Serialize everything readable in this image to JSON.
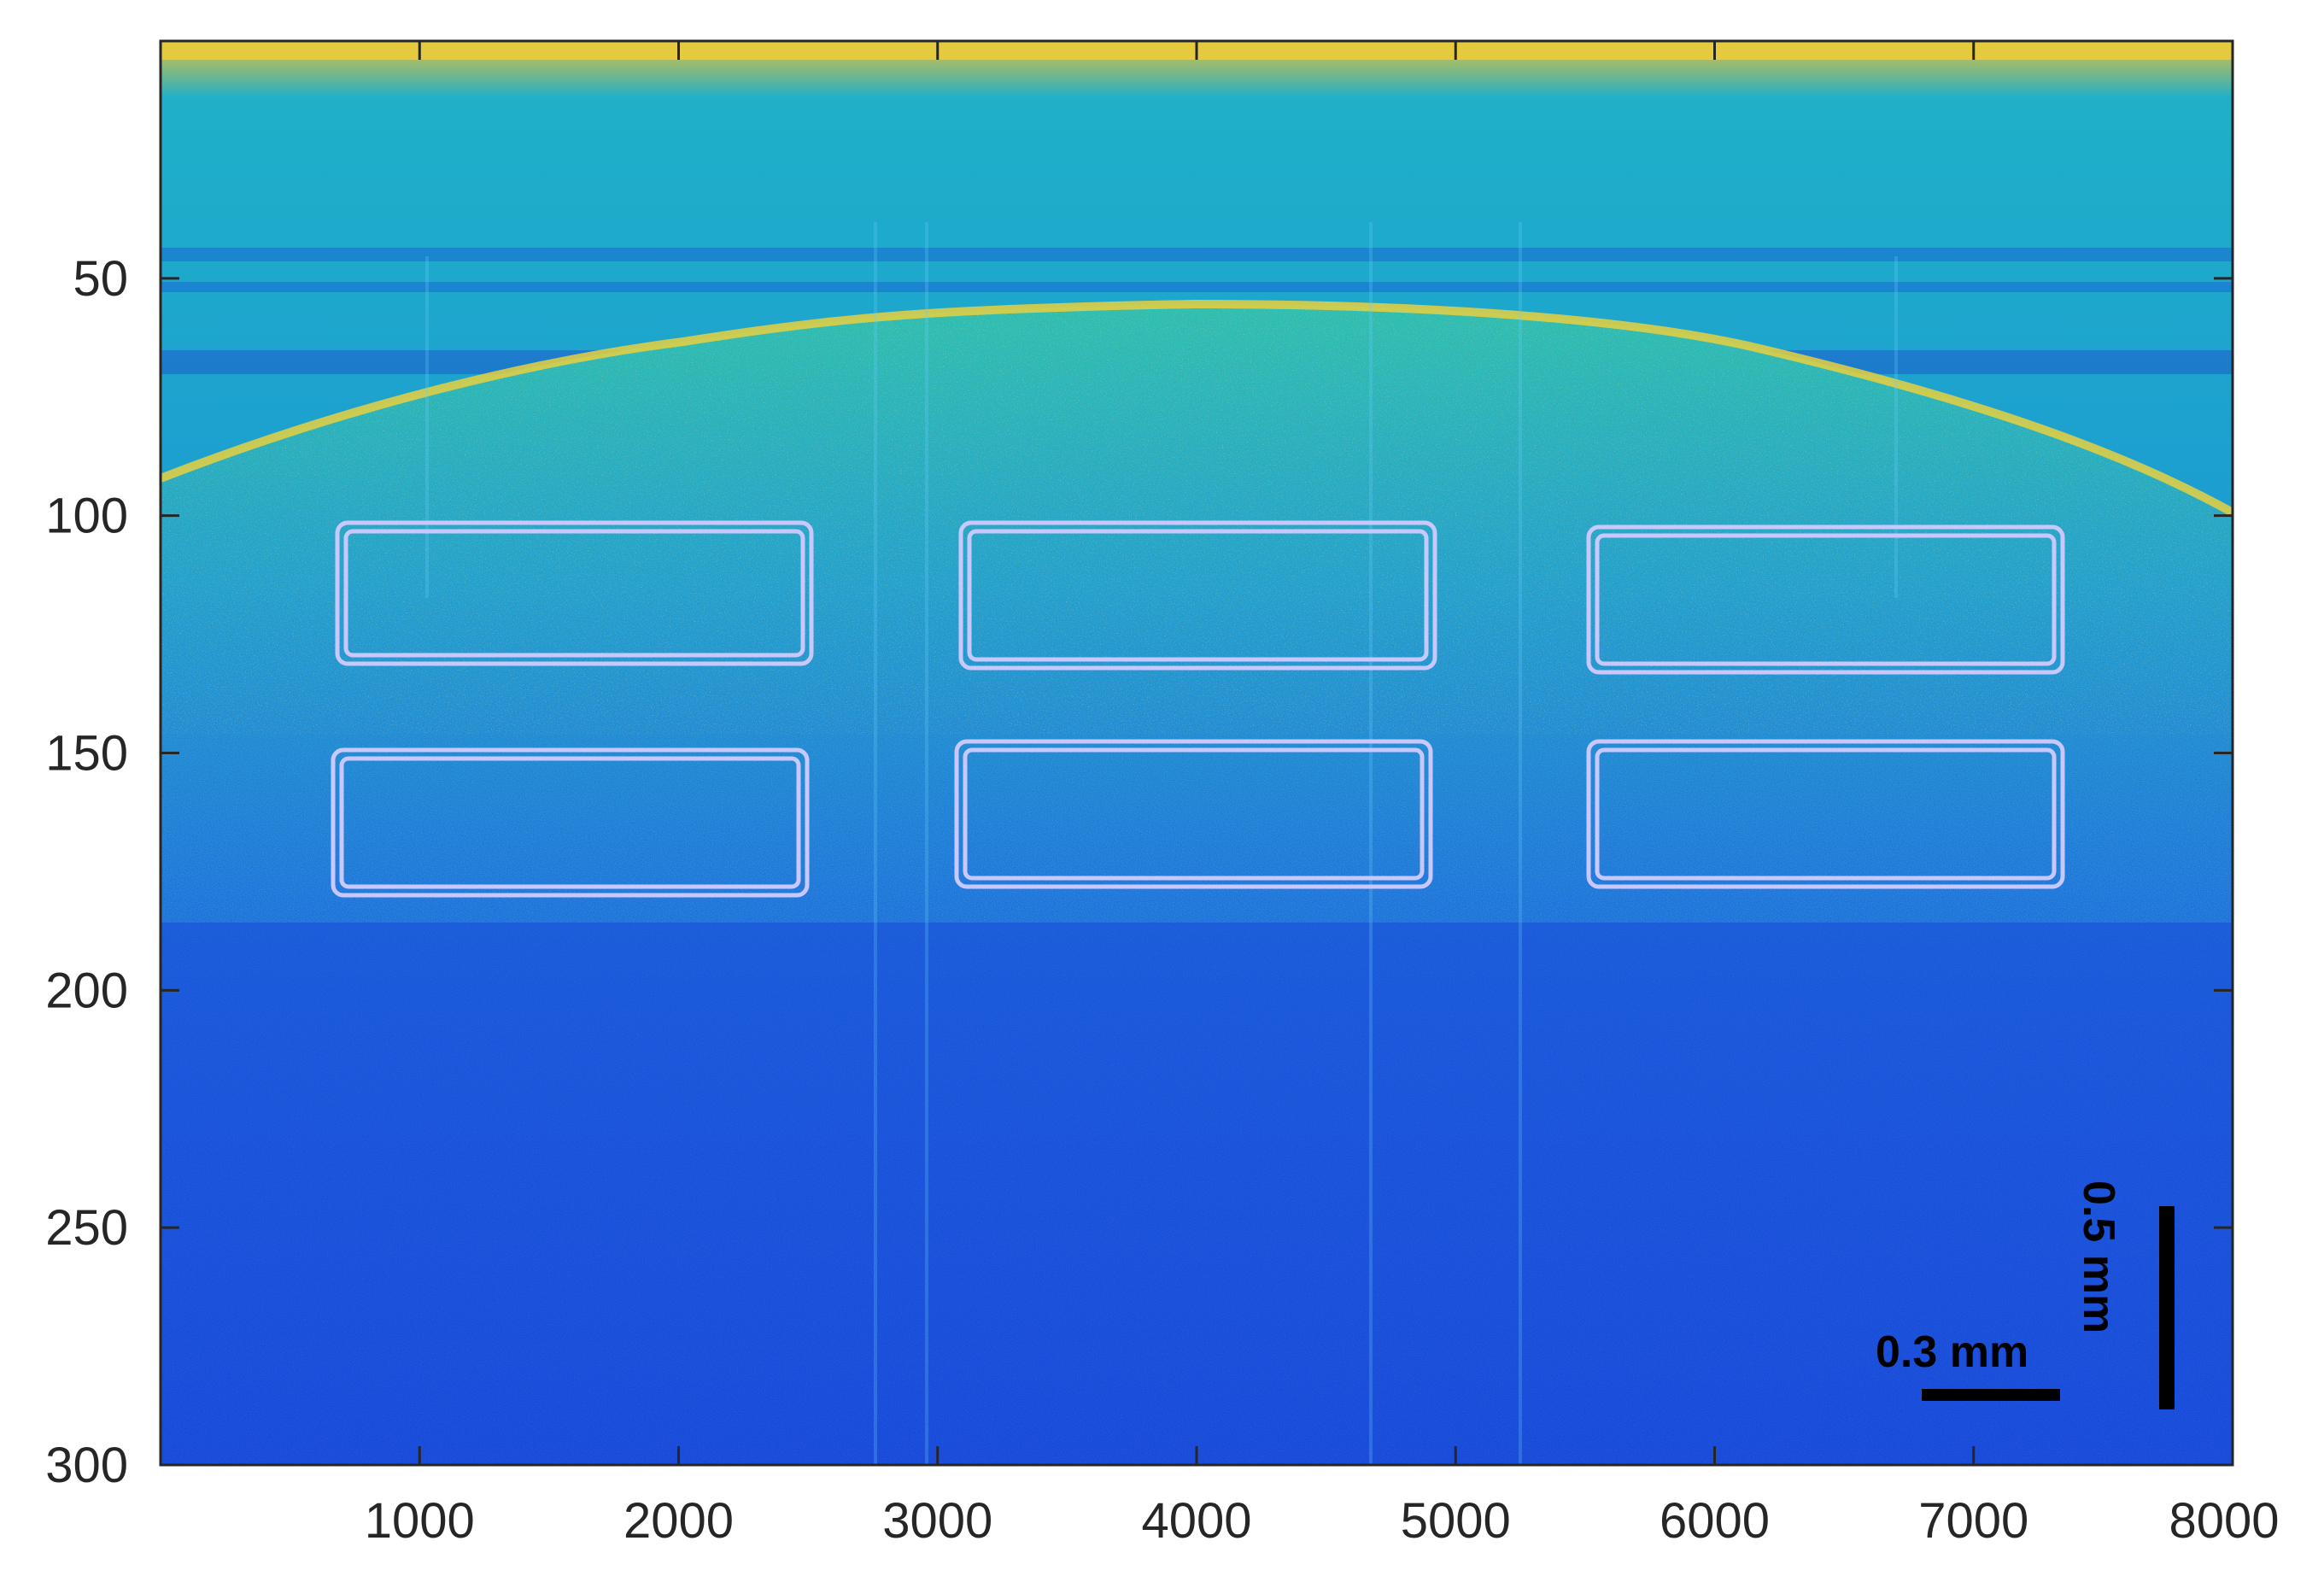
{
  "image": {
    "x_ticks": [
      "1000",
      "2000",
      "3000",
      "4000",
      "5000",
      "6000",
      "7000",
      "8000"
    ],
    "y_ticks": [
      "50",
      "100",
      "150",
      "200",
      "250",
      "300"
    ],
    "x_range": [
      0,
      8000
    ],
    "y_range": [
      0,
      300
    ],
    "y_reversed": true,
    "colormap": "parula",
    "scale_bars": {
      "horizontal_label": "0.3 mm",
      "vertical_label": "0.5 mm"
    },
    "roi_boxes_depicted": 6,
    "roi_box_color": "#c8c8ff",
    "colors": {
      "deep": "#1540d8",
      "mid": "#1f78e0",
      "surface": "#1fb6c2",
      "bright": "#e0d040"
    }
  }
}
